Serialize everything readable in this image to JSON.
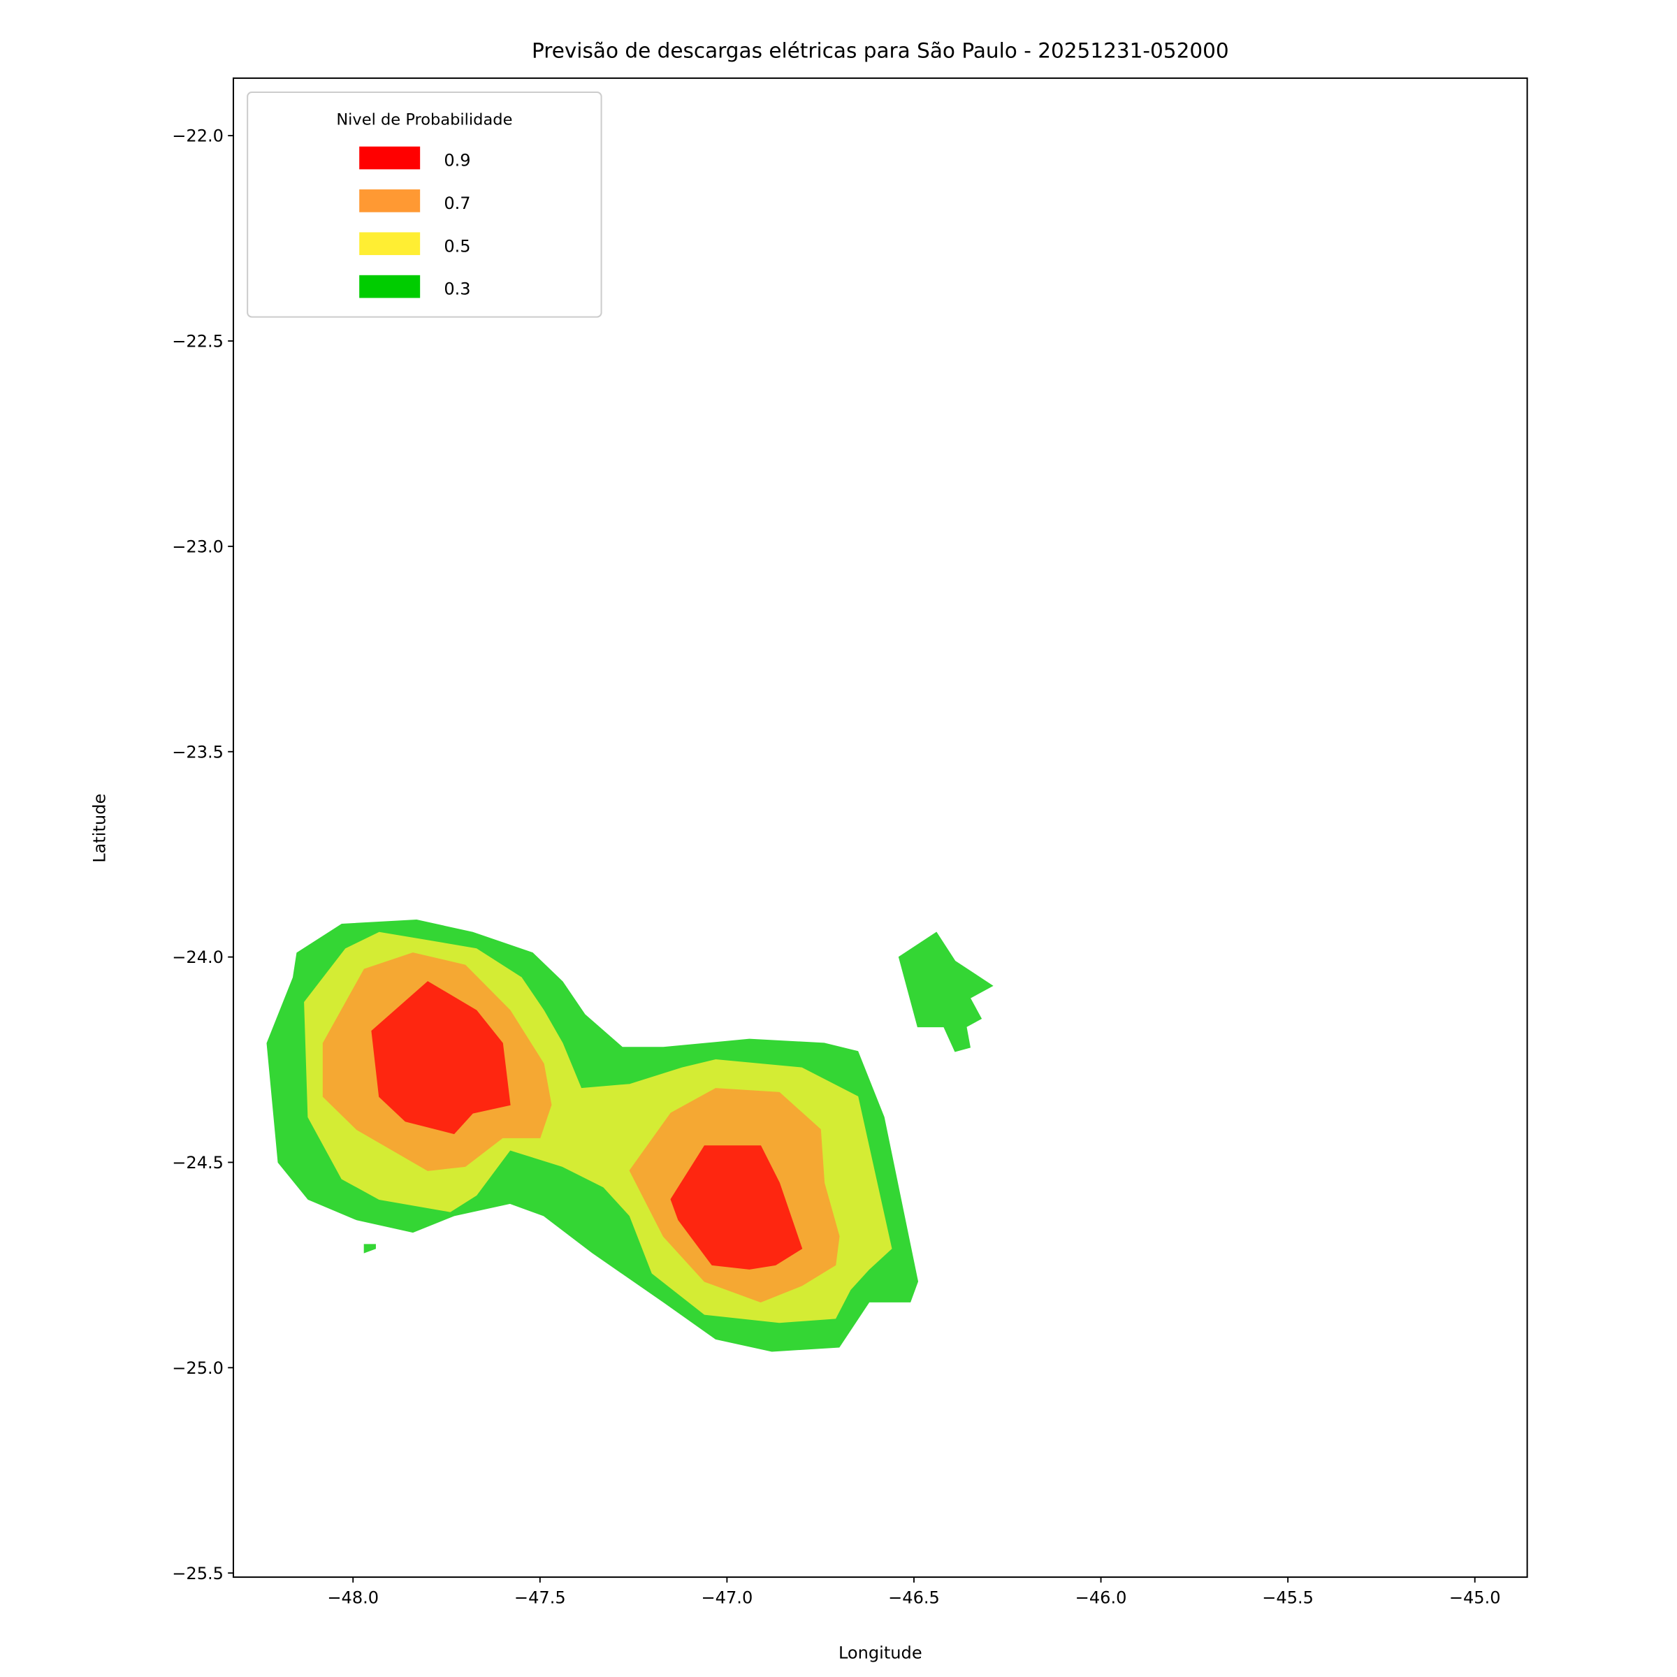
{
  "chart_data": {
    "type": "contourf",
    "title": "Previsão de descargas elétricas para São Paulo - 20251231-052000",
    "xlabel": "Longitude",
    "ylabel": "Latitude",
    "xlim": [
      -48.32,
      -44.86
    ],
    "ylim": [
      -25.51,
      -21.86
    ],
    "xticks": [
      -48.0,
      -47.5,
      -47.0,
      -46.5,
      -46.0,
      -45.5,
      -45.0
    ],
    "xtick_labels": [
      "−48.0",
      "−47.5",
      "−47.0",
      "−46.5",
      "−46.0",
      "−45.5",
      "−45.0"
    ],
    "yticks": [
      -22.0,
      -22.5,
      -23.0,
      -23.5,
      -24.0,
      -24.5,
      -25.0,
      -25.5
    ],
    "ytick_labels": [
      "−22.0",
      "−22.5",
      "−23.0",
      "−23.5",
      "−24.0",
      "−24.5",
      "−25.0",
      "−25.5"
    ],
    "grid": false,
    "legend": {
      "title": "Nivel de Probabilidade",
      "placement": "top-left",
      "entries": [
        {
          "label": "0.9",
          "color": "#ff0000"
        },
        {
          "label": "0.7",
          "color": "#ff9933"
        },
        {
          "label": "0.5",
          "color": "#ffee33"
        },
        {
          "label": "0.3",
          "color": "#00cc00"
        }
      ]
    },
    "levels": [
      {
        "level": 0.3,
        "color": "#34d634",
        "polygons": [
          [
            [
              -48.15,
              -23.99
            ],
            [
              -48.03,
              -23.92
            ],
            [
              -47.83,
              -23.91
            ],
            [
              -47.68,
              -23.94
            ],
            [
              -47.52,
              -23.99
            ],
            [
              -47.44,
              -24.06
            ],
            [
              -47.38,
              -24.14
            ],
            [
              -47.28,
              -24.22
            ],
            [
              -47.17,
              -24.22
            ],
            [
              -46.94,
              -24.2
            ],
            [
              -46.74,
              -24.21
            ],
            [
              -46.65,
              -24.23
            ],
            [
              -46.58,
              -24.39
            ],
            [
              -46.49,
              -24.79
            ],
            [
              -46.51,
              -24.84
            ],
            [
              -46.62,
              -24.84
            ],
            [
              -46.7,
              -24.95
            ],
            [
              -46.88,
              -24.96
            ],
            [
              -47.03,
              -24.93
            ],
            [
              -47.17,
              -24.84
            ],
            [
              -47.36,
              -24.72
            ],
            [
              -47.49,
              -24.63
            ],
            [
              -47.58,
              -24.6
            ],
            [
              -47.73,
              -24.63
            ],
            [
              -47.84,
              -24.67
            ],
            [
              -47.99,
              -24.64
            ],
            [
              -48.12,
              -24.59
            ],
            [
              -48.2,
              -24.5
            ],
            [
              -48.23,
              -24.21
            ],
            [
              -48.16,
              -24.05
            ]
          ],
          [
            [
              -46.54,
              -24.0
            ],
            [
              -46.44,
              -23.94
            ],
            [
              -46.39,
              -24.01
            ],
            [
              -46.29,
              -24.07
            ],
            [
              -46.35,
              -24.1
            ],
            [
              -46.32,
              -24.15
            ],
            [
              -46.36,
              -24.17
            ],
            [
              -46.35,
              -24.22
            ],
            [
              -46.39,
              -24.23
            ],
            [
              -46.42,
              -24.17
            ],
            [
              -46.49,
              -24.17
            ]
          ],
          [
            [
              -47.97,
              -24.7
            ],
            [
              -47.94,
              -24.7
            ],
            [
              -47.94,
              -24.71
            ],
            [
              -47.97,
              -24.72
            ]
          ]
        ]
      },
      {
        "level": 0.5,
        "color": "#d4ec34",
        "polygons": [
          [
            [
              -48.13,
              -24.11
            ],
            [
              -48.02,
              -23.98
            ],
            [
              -47.93,
              -23.94
            ],
            [
              -47.8,
              -23.96
            ],
            [
              -47.67,
              -23.98
            ],
            [
              -47.55,
              -24.05
            ],
            [
              -47.49,
              -24.13
            ],
            [
              -47.44,
              -24.21
            ],
            [
              -47.39,
              -24.32
            ],
            [
              -47.26,
              -24.31
            ],
            [
              -47.12,
              -24.27
            ],
            [
              -47.03,
              -24.25
            ],
            [
              -46.8,
              -24.27
            ],
            [
              -46.65,
              -24.34
            ],
            [
              -46.56,
              -24.71
            ],
            [
              -46.62,
              -24.76
            ],
            [
              -46.67,
              -24.81
            ],
            [
              -46.71,
              -24.88
            ],
            [
              -46.86,
              -24.89
            ],
            [
              -47.06,
              -24.87
            ],
            [
              -47.2,
              -24.77
            ],
            [
              -47.26,
              -24.63
            ],
            [
              -47.33,
              -24.56
            ],
            [
              -47.44,
              -24.51
            ],
            [
              -47.58,
              -24.47
            ],
            [
              -47.67,
              -24.58
            ],
            [
              -47.74,
              -24.62
            ],
            [
              -47.93,
              -24.59
            ],
            [
              -48.03,
              -24.54
            ],
            [
              -48.12,
              -24.39
            ]
          ]
        ]
      },
      {
        "level": 0.7,
        "color": "#f5a833",
        "polygons": [
          [
            [
              -48.08,
              -24.21
            ],
            [
              -47.97,
              -24.03
            ],
            [
              -47.84,
              -23.99
            ],
            [
              -47.7,
              -24.02
            ],
            [
              -47.58,
              -24.13
            ],
            [
              -47.49,
              -24.26
            ],
            [
              -47.47,
              -24.36
            ],
            [
              -47.5,
              -24.44
            ],
            [
              -47.6,
              -24.44
            ],
            [
              -47.7,
              -24.51
            ],
            [
              -47.8,
              -24.52
            ],
            [
              -47.99,
              -24.42
            ],
            [
              -48.08,
              -24.34
            ]
          ],
          [
            [
              -47.26,
              -24.52
            ],
            [
              -47.15,
              -24.38
            ],
            [
              -47.03,
              -24.32
            ],
            [
              -46.86,
              -24.33
            ],
            [
              -46.75,
              -24.42
            ],
            [
              -46.74,
              -24.55
            ],
            [
              -46.7,
              -24.68
            ],
            [
              -46.71,
              -24.75
            ],
            [
              -46.8,
              -24.8
            ],
            [
              -46.91,
              -24.84
            ],
            [
              -47.06,
              -24.79
            ],
            [
              -47.17,
              -24.68
            ]
          ]
        ]
      },
      {
        "level": 0.9,
        "color": "#fe2610",
        "polygons": [
          [
            [
              -47.95,
              -24.18
            ],
            [
              -47.8,
              -24.06
            ],
            [
              -47.67,
              -24.13
            ],
            [
              -47.6,
              -24.21
            ],
            [
              -47.58,
              -24.36
            ],
            [
              -47.68,
              -24.38
            ],
            [
              -47.73,
              -24.43
            ],
            [
              -47.86,
              -24.4
            ],
            [
              -47.93,
              -24.34
            ]
          ],
          [
            [
              -47.15,
              -24.59
            ],
            [
              -47.06,
              -24.46
            ],
            [
              -46.91,
              -24.46
            ],
            [
              -46.86,
              -24.55
            ],
            [
              -46.8,
              -24.71
            ],
            [
              -46.87,
              -24.75
            ],
            [
              -46.94,
              -24.76
            ],
            [
              -47.04,
              -24.75
            ],
            [
              -47.13,
              -24.64
            ]
          ]
        ]
      }
    ]
  }
}
